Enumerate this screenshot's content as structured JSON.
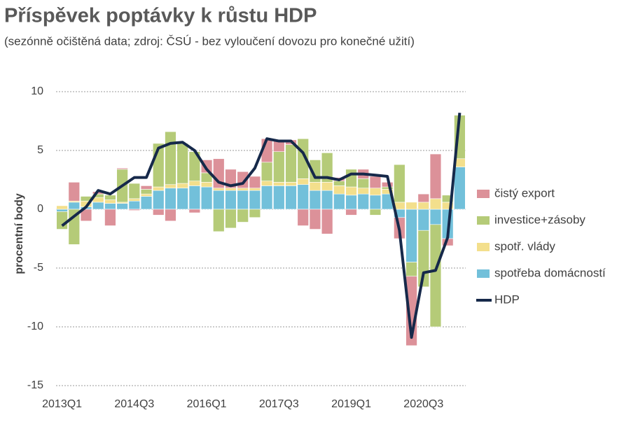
{
  "chart_data": {
    "type": "bar",
    "stacked": true,
    "title": "Příspěvek poptávky k růstu HDP",
    "subtitle": "(sezónně očištěná data; zdroj: ČSÚ - bez vyloučení dovozu pro konečné užití)",
    "y_label": "procentní body",
    "categories": [
      "2013Q1",
      null,
      null,
      null,
      null,
      null,
      "2014Q3",
      null,
      null,
      null,
      null,
      null,
      "2016Q1",
      null,
      null,
      null,
      null,
      null,
      "2017Q3",
      null,
      null,
      null,
      null,
      null,
      "2019Q1",
      null,
      null,
      null,
      null,
      null,
      "2020Q3",
      null,
      null,
      null
    ],
    "ylim": [
      -15,
      10
    ],
    "yticks": [
      -15,
      -10,
      -5,
      0,
      5,
      10
    ],
    "grid": true,
    "series": [
      {
        "name": "spotřeba domácností",
        "color": "#72c0da",
        "values": [
          -0.2,
          0.6,
          0.2,
          0.6,
          0.5,
          0.5,
          0.7,
          1.1,
          1.6,
          1.8,
          1.8,
          2.0,
          1.9,
          1.6,
          1.6,
          1.6,
          1.6,
          2.0,
          2.0,
          2.0,
          2.1,
          1.6,
          1.6,
          1.3,
          1.2,
          1.3,
          1.2,
          1.3,
          -0.7,
          -4.5,
          -1.8,
          -1.3,
          -2.5,
          3.6
        ]
      },
      {
        "name": "spotř. vlády",
        "color": "#f3df8c",
        "values": [
          0.3,
          0.1,
          0.5,
          0.4,
          0.3,
          0.1,
          0.2,
          0.2,
          0.3,
          0.3,
          0.4,
          0.4,
          0.4,
          0.2,
          0.2,
          0.2,
          0.2,
          0.4,
          0.3,
          0.3,
          0.5,
          0.7,
          0.7,
          0.7,
          0.7,
          0.5,
          0.6,
          0.4,
          0.6,
          0.6,
          0.6,
          0.9,
          0.6,
          0.7
        ]
      },
      {
        "name": "investice+zásoby",
        "color": "#b5cb78",
        "values": [
          -1.5,
          -3.0,
          0.4,
          0.3,
          0.4,
          2.8,
          1.3,
          0.4,
          3.7,
          4.5,
          3.4,
          2.5,
          0.8,
          -1.9,
          -1.6,
          -1.1,
          -0.7,
          1.6,
          2.6,
          3.2,
          3.4,
          1.9,
          2.5,
          0.4,
          1.5,
          0.8,
          -0.5,
          0.2,
          3.2,
          -1.2,
          -4.8,
          -8.7,
          0.6,
          3.7
        ]
      },
      {
        "name": "čistý export",
        "color": "#dc9199",
        "values": [
          0.0,
          1.6,
          -1.0,
          0.2,
          -1.4,
          0.1,
          -0.1,
          0.3,
          -0.5,
          -1.0,
          0.0,
          -0.3,
          1.1,
          2.5,
          1.6,
          1.4,
          1.0,
          2.0,
          1.0,
          0.4,
          -1.4,
          -1.7,
          -2.1,
          0.3,
          -0.5,
          0.8,
          1.0,
          0.4,
          -1.8,
          -5.9,
          0.7,
          3.8,
          -0.6,
          0.0
        ]
      },
      {
        "name": "HDP",
        "type": "line",
        "color": "#16294a",
        "values": [
          -1.4,
          -0.6,
          0.2,
          1.6,
          1.3,
          2.0,
          2.7,
          2.7,
          5.2,
          5.6,
          5.7,
          5.0,
          3.4,
          2.3,
          2.0,
          2.2,
          3.5,
          6.0,
          5.8,
          5.8,
          4.8,
          2.7,
          2.7,
          2.5,
          3.0,
          3.0,
          2.9,
          2.8,
          -1.8,
          -10.9,
          -5.4,
          -5.2,
          -2.4,
          8.2
        ]
      }
    ]
  }
}
